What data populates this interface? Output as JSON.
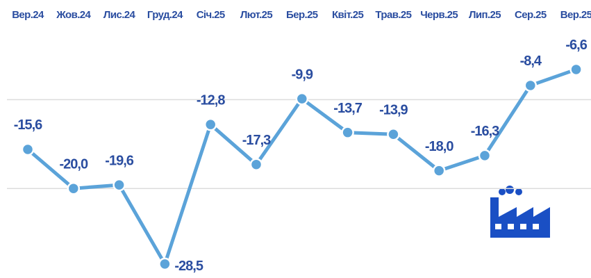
{
  "chart_data": {
    "type": "line",
    "categories": [
      "Вер.24",
      "Жов.24",
      "Лис.24",
      "Груд.24",
      "Січ.25",
      "Лют.25",
      "Бер.25",
      "Квіт.25",
      "Трав.25",
      "Черв.25",
      "Лип.25",
      "Сер.25",
      "Вер.25"
    ],
    "series": [
      {
        "color": "#5ba3d9",
        "values": [
          -15.6,
          -20.0,
          -19.6,
          -28.5,
          -12.8,
          -17.3,
          -9.9,
          -13.7,
          -13.9,
          -18.0,
          -16.3,
          -8.4,
          -6.6
        ],
        "value_labels": [
          "-15,6",
          "-20,0",
          "-19,6",
          "-28,5",
          "-12,8",
          "-17,3",
          "-9,9",
          "-13,7",
          "-13,9",
          "-18,0",
          "-16,3",
          "-8,4",
          "-6,6"
        ]
      }
    ],
    "ylim": [
      -30,
      -5
    ],
    "yticks": [
      -20,
      -10
    ],
    "grid": true
  }
}
